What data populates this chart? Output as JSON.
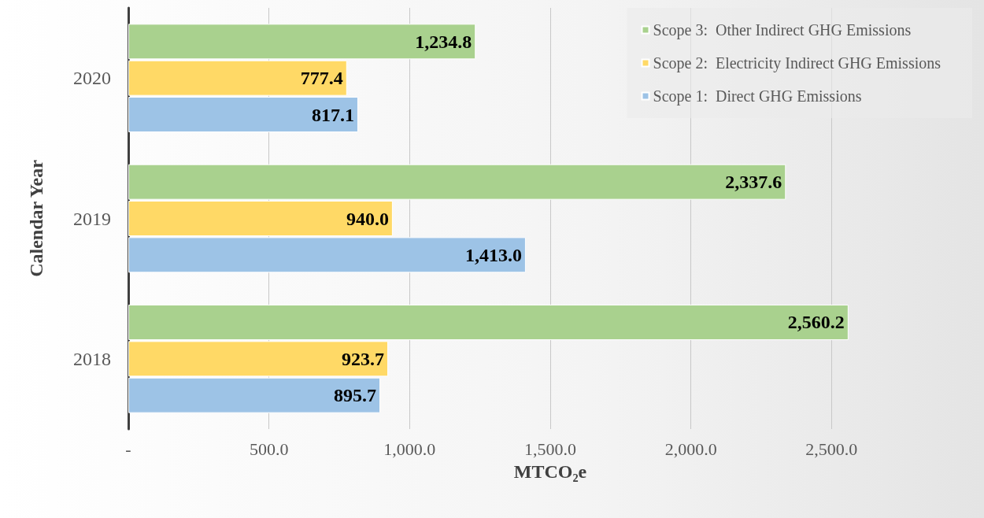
{
  "chart_data": {
    "type": "bar",
    "orientation": "horizontal",
    "xlabel": "MTCO₂e",
    "ylabel": "Calendar Year",
    "categories": [
      "2020",
      "2019",
      "2018"
    ],
    "series": [
      {
        "name": "Scope 3:  Other Indirect GHG Emissions",
        "color": "#a9d18e",
        "values": [
          1234.8,
          2337.6,
          2560.2
        ],
        "value_labels": [
          "1,234.8",
          "2,337.6",
          "2,560.2"
        ]
      },
      {
        "name": "Scope 2:  Electricity Indirect GHG Emissions",
        "color": "#ffd966",
        "values": [
          777.4,
          940.0,
          923.7
        ],
        "value_labels": [
          "777.4",
          "940.0",
          "923.7"
        ]
      },
      {
        "name": "Scope 1:  Direct GHG Emissions",
        "color": "#9dc3e6",
        "values": [
          817.1,
          1413.0,
          895.7
        ],
        "value_labels": [
          "817.1",
          "1,413.0",
          "895.7"
        ]
      }
    ],
    "xlim": [
      0,
      3000
    ],
    "xticks": [
      {
        "value": 0,
        "label": "-"
      },
      {
        "value": 500,
        "label": "500.0"
      },
      {
        "value": 1000,
        "label": "1,000.0"
      },
      {
        "value": 1500,
        "label": "1,500.0"
      },
      {
        "value": 2000,
        "label": "2,000.0"
      },
      {
        "value": 2500,
        "label": "2,500.0"
      }
    ],
    "grid": "x",
    "legend": "top right"
  }
}
